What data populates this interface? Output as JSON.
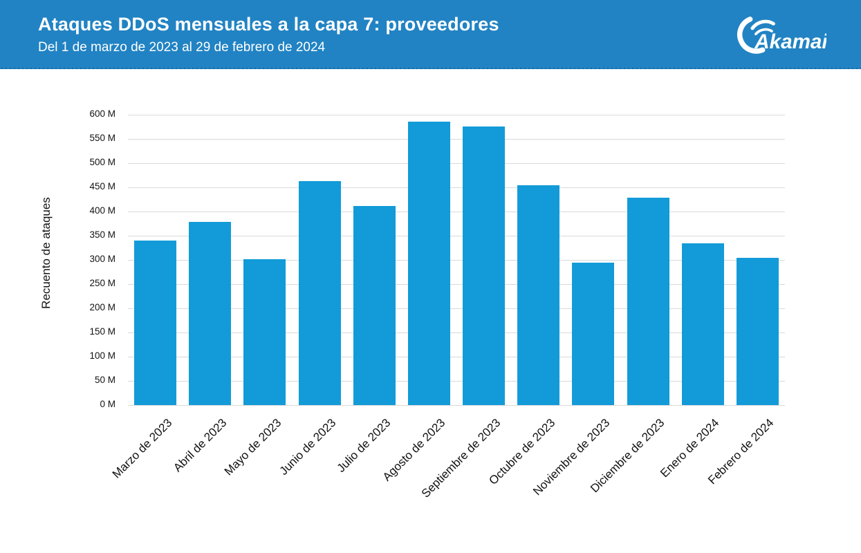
{
  "header": {
    "title": "Ataques DDoS mensuales a la capa 7: proveedores",
    "subtitle": "Del 1 de marzo de 2023 al 29 de febrero de 2024",
    "logo_text": "Akamai",
    "background_color": "#2183c3",
    "text_color": "#ffffff"
  },
  "chart_data": {
    "type": "bar",
    "title": "Ataques DDoS mensuales a la capa 7: proveedores",
    "subtitle": "Del 1 de marzo de 2023 al 29 de febrero de 2024",
    "xlabel": "",
    "ylabel": "Recuento de ataques",
    "unit": "M",
    "categories": [
      "Marzo de 2023",
      "Abril de 2023",
      "Mayo de 2023",
      "Junio de 2023",
      "Julio de 2023",
      "Agosto de 2023",
      "Septiembre de 2023",
      "Octubre de 2023",
      "Noviembre de 2023",
      "Diciembre de 2023",
      "Enero de 2024",
      "Febrero de 2024"
    ],
    "values": [
      340,
      378,
      301,
      463,
      411,
      586,
      576,
      454,
      295,
      429,
      334,
      304
    ],
    "values_unit_suffix": "M",
    "ylim": [
      0,
      600
    ],
    "ytick_step": 50,
    "ytick_labels": [
      "0 M",
      "50 M",
      "100 M",
      "150 M",
      "200 M",
      "250 M",
      "300 M",
      "350 M",
      "400 M",
      "450 M",
      "500 M",
      "550 M",
      "600 M"
    ],
    "grid": true,
    "legend_position": "none",
    "bar_color": "#129bd8",
    "gridline_color": "#d9d9d9",
    "xtick_rotation_deg": 45
  }
}
